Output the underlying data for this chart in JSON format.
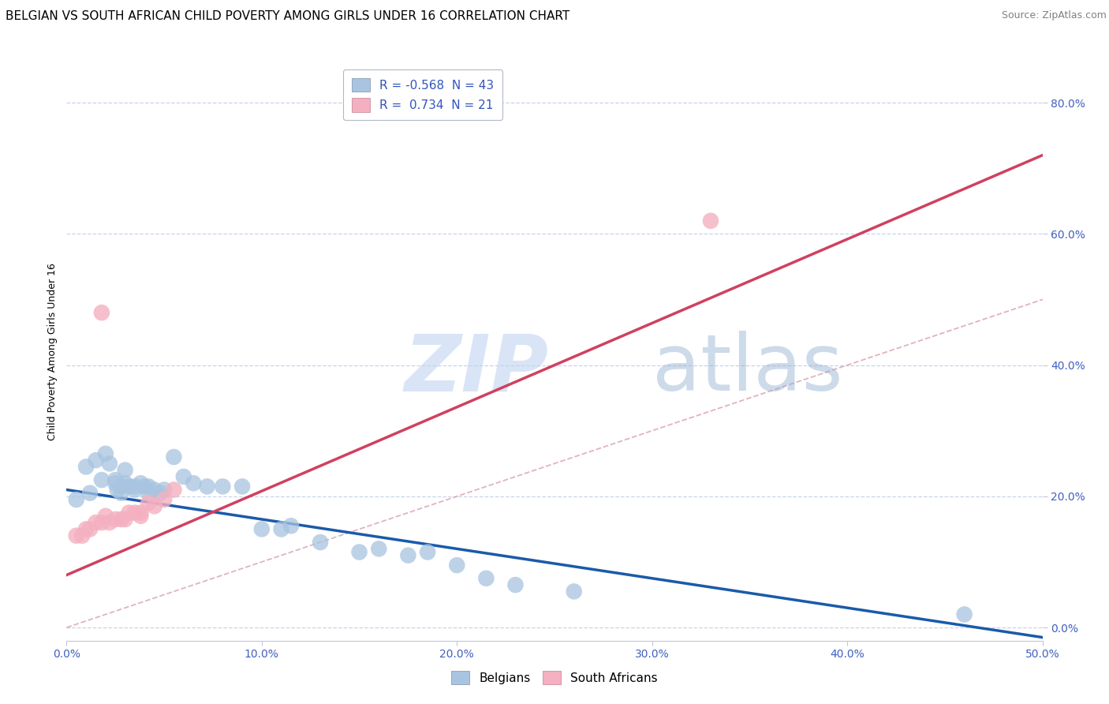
{
  "title": "BELGIAN VS SOUTH AFRICAN CHILD POVERTY AMONG GIRLS UNDER 16 CORRELATION CHART",
  "source": "Source: ZipAtlas.com",
  "ylabel": "Child Poverty Among Girls Under 16",
  "xlim": [
    0.0,
    0.5
  ],
  "ylim": [
    -0.02,
    0.86
  ],
  "watermark_zip": "ZIP",
  "watermark_atlas": "atlas",
  "legend_entries": [
    {
      "label": "R = -0.568  N = 43",
      "color": "#a8c4e0"
    },
    {
      "label": "R =  0.734  N = 21",
      "color": "#f0a0b0"
    }
  ],
  "legend_label_belgians": "Belgians",
  "legend_label_south_africans": "South Africans",
  "belgian_color": "#a8c4e0",
  "sa_color": "#f4b0c0",
  "belgian_line_color": "#1a5aaa",
  "sa_line_color": "#d04060",
  "ref_line_color": "#d8a0b0",
  "background_color": "#ffffff",
  "grid_color": "#c8d4e8",
  "title_fontsize": 11,
  "source_fontsize": 9,
  "axis_label_fontsize": 9,
  "tick_fontsize": 10,
  "legend_fontsize": 11,
  "belgians": [
    [
      0.005,
      0.195
    ],
    [
      0.01,
      0.245
    ],
    [
      0.012,
      0.205
    ],
    [
      0.015,
      0.255
    ],
    [
      0.018,
      0.225
    ],
    [
      0.02,
      0.265
    ],
    [
      0.022,
      0.25
    ],
    [
      0.025,
      0.225
    ],
    [
      0.025,
      0.22
    ],
    [
      0.026,
      0.21
    ],
    [
      0.028,
      0.215
    ],
    [
      0.028,
      0.205
    ],
    [
      0.03,
      0.24
    ],
    [
      0.03,
      0.22
    ],
    [
      0.032,
      0.215
    ],
    [
      0.035,
      0.215
    ],
    [
      0.035,
      0.21
    ],
    [
      0.038,
      0.22
    ],
    [
      0.04,
      0.215
    ],
    [
      0.042,
      0.215
    ],
    [
      0.042,
      0.205
    ],
    [
      0.045,
      0.21
    ],
    [
      0.048,
      0.205
    ],
    [
      0.05,
      0.21
    ],
    [
      0.055,
      0.26
    ],
    [
      0.06,
      0.23
    ],
    [
      0.065,
      0.22
    ],
    [
      0.072,
      0.215
    ],
    [
      0.08,
      0.215
    ],
    [
      0.09,
      0.215
    ],
    [
      0.1,
      0.15
    ],
    [
      0.11,
      0.15
    ],
    [
      0.115,
      0.155
    ],
    [
      0.13,
      0.13
    ],
    [
      0.15,
      0.115
    ],
    [
      0.16,
      0.12
    ],
    [
      0.175,
      0.11
    ],
    [
      0.185,
      0.115
    ],
    [
      0.2,
      0.095
    ],
    [
      0.215,
      0.075
    ],
    [
      0.23,
      0.065
    ],
    [
      0.26,
      0.055
    ],
    [
      0.46,
      0.02
    ]
  ],
  "south_africans": [
    [
      0.005,
      0.14
    ],
    [
      0.008,
      0.14
    ],
    [
      0.01,
      0.15
    ],
    [
      0.012,
      0.15
    ],
    [
      0.015,
      0.16
    ],
    [
      0.018,
      0.16
    ],
    [
      0.02,
      0.17
    ],
    [
      0.022,
      0.16
    ],
    [
      0.025,
      0.165
    ],
    [
      0.028,
      0.165
    ],
    [
      0.03,
      0.165
    ],
    [
      0.032,
      0.175
    ],
    [
      0.035,
      0.175
    ],
    [
      0.038,
      0.17
    ],
    [
      0.038,
      0.175
    ],
    [
      0.042,
      0.19
    ],
    [
      0.045,
      0.185
    ],
    [
      0.05,
      0.195
    ],
    [
      0.055,
      0.21
    ],
    [
      0.33,
      0.62
    ],
    [
      0.018,
      0.48
    ]
  ],
  "blue_line": [
    [
      0.0,
      0.21
    ],
    [
      0.5,
      -0.015
    ]
  ],
  "pink_line": [
    [
      0.0,
      0.08
    ],
    [
      0.5,
      0.72
    ]
  ],
  "ref_line": [
    [
      0.0,
      0.0
    ],
    [
      0.86,
      0.86
    ]
  ]
}
